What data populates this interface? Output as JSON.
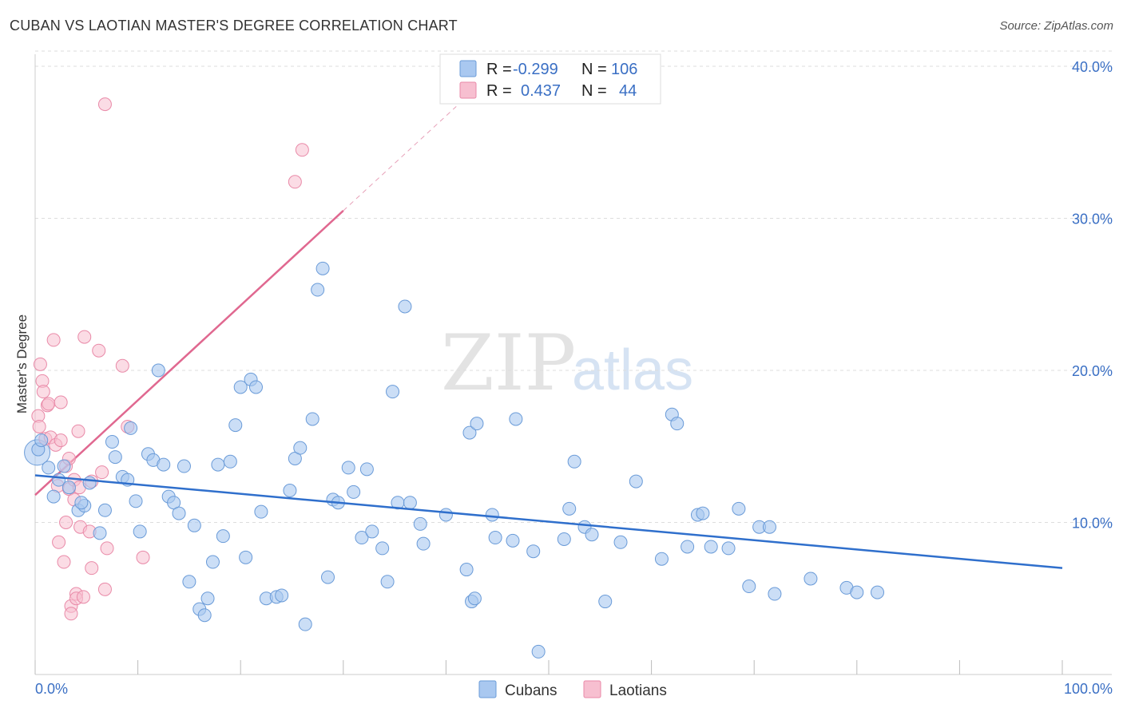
{
  "title": "CUBAN VS LAOTIAN MASTER'S DEGREE CORRELATION CHART",
  "source": "Source: ZipAtlas.com",
  "watermark": {
    "part1": "ZIP",
    "part2": "atlas"
  },
  "legend": {
    "rows": [
      {
        "r_label": "R =",
        "r_value": "-0.299",
        "n_label": "N =",
        "n_value": "106",
        "color": "#a9c8f0",
        "stroke": "#6a9bd8"
      },
      {
        "r_label": "R =",
        "r_value": "0.437",
        "n_label": "N =",
        "n_value": "44",
        "color": "#f7bfd0",
        "stroke": "#e98aa8"
      }
    ]
  },
  "colors": {
    "cubans_fill": "#a9c8f0",
    "cubans_stroke": "#6a9bd8",
    "cubans_line": "#2f6fcc",
    "laotians_fill": "#f7bfd0",
    "laotians_stroke": "#e98aa8",
    "laotians_line": "#e06890",
    "grid": "#dddddd",
    "axis_text": "#3a6fc4"
  },
  "chart_data": {
    "type": "scatter",
    "title": "CUBAN VS LAOTIAN MASTER'S DEGREE CORRELATION CHART",
    "xlabel": "",
    "ylabel": "Master's Degree",
    "xlim": [
      0,
      100
    ],
    "ylim": [
      0,
      42
    ],
    "x_tick_labels": [
      "0.0%",
      "100.0%"
    ],
    "y_ticks": [
      10,
      20,
      30,
      40
    ],
    "y_tick_labels": [
      "10.0%",
      "20.0%",
      "30.0%",
      "40.0%"
    ],
    "grid": true,
    "legend_position": "bottom-center",
    "series": [
      {
        "name": "Cubans",
        "trend": {
          "x": [
            0,
            100
          ],
          "y": [
            13.1,
            7.0
          ]
        },
        "points": [
          [
            0.3,
            14.8
          ],
          [
            0.6,
            15.4
          ],
          [
            1.3,
            13.6
          ],
          [
            1.8,
            11.7
          ],
          [
            2.3,
            12.8
          ],
          [
            2.8,
            13.7
          ],
          [
            3.3,
            12.3
          ],
          [
            4.2,
            10.8
          ],
          [
            4.8,
            11.1
          ],
          [
            5.3,
            12.6
          ],
          [
            4.5,
            11.3
          ],
          [
            6.3,
            9.3
          ],
          [
            6.8,
            10.8
          ],
          [
            7.5,
            15.3
          ],
          [
            7.8,
            14.3
          ],
          [
            8.5,
            13.0
          ],
          [
            9.0,
            12.8
          ],
          [
            9.3,
            16.2
          ],
          [
            9.8,
            11.4
          ],
          [
            10.2,
            9.4
          ],
          [
            11.0,
            14.5
          ],
          [
            11.5,
            14.1
          ],
          [
            12.0,
            20.0
          ],
          [
            12.5,
            13.8
          ],
          [
            13.0,
            11.7
          ],
          [
            13.5,
            11.3
          ],
          [
            14.0,
            10.6
          ],
          [
            14.5,
            13.7
          ],
          [
            15.0,
            6.1
          ],
          [
            15.5,
            9.8
          ],
          [
            16.0,
            4.3
          ],
          [
            16.5,
            3.9
          ],
          [
            16.8,
            5.0
          ],
          [
            17.3,
            7.4
          ],
          [
            17.8,
            13.8
          ],
          [
            18.3,
            9.1
          ],
          [
            19.0,
            14.0
          ],
          [
            19.5,
            16.4
          ],
          [
            20.0,
            18.9
          ],
          [
            20.5,
            7.7
          ],
          [
            21.0,
            19.4
          ],
          [
            21.5,
            18.9
          ],
          [
            22.0,
            10.7
          ],
          [
            22.5,
            5.0
          ],
          [
            23.5,
            5.1
          ],
          [
            24.0,
            5.2
          ],
          [
            24.8,
            12.1
          ],
          [
            25.3,
            14.2
          ],
          [
            25.8,
            14.9
          ],
          [
            26.3,
            3.3
          ],
          [
            27.0,
            16.8
          ],
          [
            27.5,
            25.3
          ],
          [
            28.0,
            26.7
          ],
          [
            28.5,
            6.4
          ],
          [
            29.0,
            11.5
          ],
          [
            29.5,
            11.3
          ],
          [
            30.5,
            13.6
          ],
          [
            31.0,
            12.0
          ],
          [
            31.8,
            9.0
          ],
          [
            32.3,
            13.5
          ],
          [
            32.8,
            9.4
          ],
          [
            33.8,
            8.3
          ],
          [
            34.3,
            6.1
          ],
          [
            34.8,
            18.6
          ],
          [
            35.3,
            11.3
          ],
          [
            36.0,
            24.2
          ],
          [
            36.5,
            11.3
          ],
          [
            37.5,
            9.9
          ],
          [
            37.8,
            8.6
          ],
          [
            40.0,
            10.5
          ],
          [
            42.0,
            6.9
          ],
          [
            42.5,
            4.8
          ],
          [
            42.8,
            5.0
          ],
          [
            42.3,
            15.9
          ],
          [
            43.0,
            16.5
          ],
          [
            44.5,
            10.5
          ],
          [
            44.8,
            9.0
          ],
          [
            46.5,
            8.8
          ],
          [
            46.8,
            16.8
          ],
          [
            48.5,
            8.1
          ],
          [
            49.0,
            1.5
          ],
          [
            51.5,
            8.9
          ],
          [
            52.0,
            10.9
          ],
          [
            52.5,
            14.0
          ],
          [
            53.5,
            9.7
          ],
          [
            54.2,
            9.2
          ],
          [
            55.5,
            4.8
          ],
          [
            57.0,
            8.7
          ],
          [
            58.5,
            12.7
          ],
          [
            61.0,
            7.6
          ],
          [
            62.0,
            17.1
          ],
          [
            62.5,
            16.5
          ],
          [
            63.5,
            8.4
          ],
          [
            64.5,
            10.5
          ],
          [
            65.0,
            10.6
          ],
          [
            65.8,
            8.4
          ],
          [
            67.5,
            8.3
          ],
          [
            68.5,
            10.9
          ],
          [
            69.5,
            5.8
          ],
          [
            70.5,
            9.7
          ],
          [
            71.5,
            9.7
          ],
          [
            72.0,
            5.3
          ],
          [
            75.5,
            6.3
          ],
          [
            79.0,
            5.7
          ],
          [
            80.0,
            5.4
          ],
          [
            82.0,
            5.4
          ]
        ]
      },
      {
        "name": "Laotians",
        "trend": {
          "x": [
            0,
            30
          ],
          "y": [
            11.8,
            30.5
          ]
        },
        "points": [
          [
            0.3,
            17.0
          ],
          [
            0.4,
            16.3
          ],
          [
            0.5,
            20.4
          ],
          [
            0.7,
            19.3
          ],
          [
            0.8,
            18.6
          ],
          [
            1.0,
            15.5
          ],
          [
            1.2,
            17.7
          ],
          [
            1.3,
            17.8
          ],
          [
            1.5,
            15.6
          ],
          [
            1.8,
            22.0
          ],
          [
            2.0,
            15.1
          ],
          [
            2.2,
            12.4
          ],
          [
            2.3,
            8.7
          ],
          [
            2.5,
            15.4
          ],
          [
            2.5,
            17.9
          ],
          [
            2.8,
            7.4
          ],
          [
            3.0,
            13.7
          ],
          [
            3.0,
            10.0
          ],
          [
            3.3,
            14.2
          ],
          [
            3.3,
            12.2
          ],
          [
            3.5,
            4.5
          ],
          [
            3.5,
            4.0
          ],
          [
            3.8,
            11.5
          ],
          [
            3.8,
            12.8
          ],
          [
            4.0,
            5.3
          ],
          [
            4.0,
            5.0
          ],
          [
            4.2,
            16.0
          ],
          [
            4.3,
            12.3
          ],
          [
            4.4,
            9.7
          ],
          [
            4.7,
            5.1
          ],
          [
            4.8,
            22.2
          ],
          [
            5.3,
            9.4
          ],
          [
            5.5,
            12.7
          ],
          [
            5.5,
            7.0
          ],
          [
            6.2,
            21.3
          ],
          [
            6.5,
            13.3
          ],
          [
            6.8,
            5.6
          ],
          [
            7.0,
            8.3
          ],
          [
            6.8,
            37.5
          ],
          [
            8.5,
            20.3
          ],
          [
            9.0,
            16.3
          ],
          [
            10.5,
            7.7
          ],
          [
            25.3,
            32.4
          ],
          [
            26.0,
            34.5
          ]
        ]
      }
    ]
  }
}
